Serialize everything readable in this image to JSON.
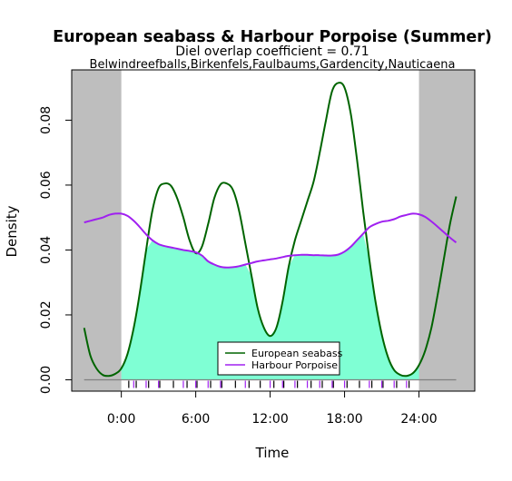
{
  "chart_data": {
    "type": "line",
    "title": "European seabass & Harbour Porpoise (Summer)",
    "subtitle": "Diel overlap coefficient =  0.71",
    "subtitle2": "Belwindreefballs,Birkenfels,Faulbaums,Gardencity,Nauticaena",
    "xlabel": "Time",
    "ylabel": "Density",
    "xlim": [
      -4,
      28.5
    ],
    "ylim": [
      -0.0035,
      0.0955
    ],
    "night_shading": [
      [
        -4,
        0
      ],
      [
        24,
        28.5
      ]
    ],
    "x_ticks": [
      0,
      6,
      12,
      18,
      24
    ],
    "x_tick_labels": [
      "0:00",
      "6:00",
      "12:00",
      "18:00",
      "24:00"
    ],
    "y_ticks": [
      0,
      0.02,
      0.04,
      0.06,
      0.08
    ],
    "y_tick_labels": [
      "0.00",
      "0.02",
      "0.04",
      "0.06",
      "0.08"
    ],
    "legend": {
      "position": "bottom-center"
    },
    "series": [
      {
        "name": "European seabass",
        "color": "#006400",
        "x": [
          -3,
          -2.5,
          -2,
          -1.5,
          -1,
          -0.5,
          0,
          0.5,
          1,
          1.5,
          2,
          2.5,
          3,
          3.5,
          4,
          4.5,
          5,
          5.5,
          6,
          6.5,
          7,
          7.5,
          8,
          8.5,
          9,
          9.5,
          10,
          10.5,
          11,
          11.5,
          12,
          12.5,
          13,
          13.5,
          14,
          14.5,
          15,
          15.5,
          16,
          16.5,
          17,
          17.5,
          18,
          18.5,
          19,
          19.5,
          20,
          20.5,
          21,
          21.5,
          22,
          22.5,
          23,
          23.5,
          24,
          24.5,
          25,
          25.5,
          26,
          26.5,
          27
        ],
        "values": [
          0.016,
          0.0075,
          0.0035,
          0.0015,
          0.0012,
          0.0018,
          0.0035,
          0.008,
          0.016,
          0.027,
          0.04,
          0.052,
          0.059,
          0.0605,
          0.0598,
          0.056,
          0.05,
          0.043,
          0.039,
          0.041,
          0.048,
          0.056,
          0.0602,
          0.0605,
          0.0585,
          0.052,
          0.042,
          0.032,
          0.022,
          0.016,
          0.0135,
          0.016,
          0.024,
          0.035,
          0.043,
          0.049,
          0.055,
          0.061,
          0.07,
          0.08,
          0.089,
          0.0915,
          0.09,
          0.082,
          0.068,
          0.052,
          0.037,
          0.024,
          0.014,
          0.007,
          0.003,
          0.0015,
          0.0012,
          0.002,
          0.0045,
          0.009,
          0.016,
          0.026,
          0.037,
          0.048,
          0.0565
        ]
      },
      {
        "name": "Harbour Porpoise",
        "color": "#A020F0",
        "x": [
          -3,
          -2.5,
          -2,
          -1.5,
          -1,
          -0.5,
          0,
          0.5,
          1,
          1.5,
          2,
          2.5,
          3,
          3.5,
          4,
          4.5,
          5,
          5.5,
          6,
          6.5,
          7,
          7.5,
          8,
          8.5,
          9,
          9.5,
          10,
          10.5,
          11,
          11.5,
          12,
          12.5,
          13,
          13.5,
          14,
          14.5,
          15,
          15.5,
          16,
          16.5,
          17,
          17.5,
          18,
          18.5,
          19,
          19.5,
          20,
          20.5,
          21,
          21.5,
          22,
          22.5,
          23,
          23.5,
          24,
          24.5,
          25,
          25.5,
          26,
          26.5,
          27
        ],
        "values": [
          0.0485,
          0.049,
          0.0495,
          0.05,
          0.0508,
          0.0512,
          0.0512,
          0.0505,
          0.049,
          0.047,
          0.0448,
          0.043,
          0.0418,
          0.0412,
          0.0408,
          0.0404,
          0.04,
          0.0397,
          0.0393,
          0.0383,
          0.0365,
          0.0355,
          0.0348,
          0.0346,
          0.0347,
          0.035,
          0.0355,
          0.036,
          0.0365,
          0.0368,
          0.0371,
          0.0374,
          0.0378,
          0.0382,
          0.0384,
          0.0385,
          0.0385,
          0.0384,
          0.0384,
          0.0383,
          0.0383,
          0.0386,
          0.0395,
          0.041,
          0.043,
          0.045,
          0.047,
          0.048,
          0.0487,
          0.049,
          0.0495,
          0.0503,
          0.0508,
          0.0512,
          0.051,
          0.0502,
          0.0488,
          0.0472,
          0.0455,
          0.0438,
          0.0423
        ]
      }
    ],
    "overlap_fill": {
      "color": "#7FFFD4",
      "x_range": [
        0,
        24
      ]
    },
    "rug": {
      "European seabass": {
        "color": "#000000",
        "x": [
          0.6,
          1.2,
          2.2,
          3.1,
          4.2,
          5.3,
          6.1,
          7.2,
          8.1,
          9.2,
          10.3,
          11.2,
          12.3,
          13.1,
          14.2,
          15.3,
          16.2,
          17.1,
          18.2,
          19.2,
          20.2,
          21.1,
          22.2,
          23.2
        ]
      },
      "Harbour Porpoise": {
        "color": "#A020F0",
        "x": [
          1.0,
          2.0,
          3.0,
          5.0,
          6.0,
          7.0,
          8.0,
          10.0,
          12.0,
          13.0,
          14.0,
          15.0,
          16.0,
          17.0,
          18.0,
          20.0,
          21.0,
          22.0,
          23.0
        ]
      }
    }
  }
}
